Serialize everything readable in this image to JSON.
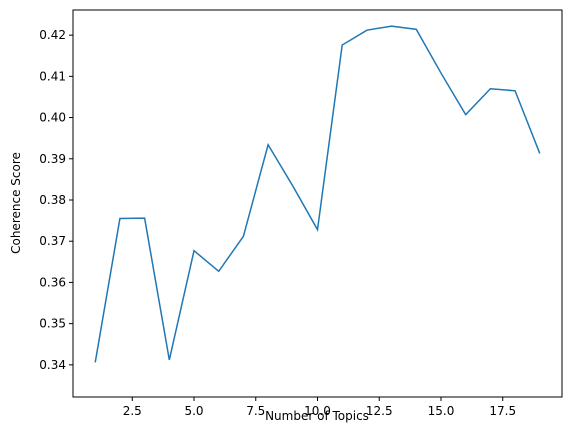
{
  "chart_data": {
    "type": "line",
    "x_label": "Number of Topics",
    "y_label": "Coherence Score",
    "x": [
      1,
      2,
      3,
      4,
      5,
      6,
      7,
      8,
      9,
      10,
      11,
      12,
      13,
      14,
      15,
      16,
      17,
      18,
      19
    ],
    "series": [
      {
        "color": "#1f77b4",
        "values": [
          0.3406,
          0.3755,
          0.3756,
          0.3412,
          0.3677,
          0.3627,
          0.3712,
          0.3934,
          0.3834,
          0.3728,
          0.4176,
          0.4212,
          0.4222,
          0.4214,
          0.4108,
          0.4007,
          0.407,
          0.4065,
          0.3913
        ]
      }
    ],
    "xlim": [
      0.1,
      19.9
    ],
    "ylim": [
      0.3322,
      0.4261
    ],
    "xticks": [
      {
        "value": 2.5,
        "label": "2.5"
      },
      {
        "value": 5,
        "label": "5.0"
      },
      {
        "value": 7.5,
        "label": "7.5"
      },
      {
        "value": 10,
        "label": "10.0"
      },
      {
        "value": 12.5,
        "label": "12.5"
      },
      {
        "value": 15,
        "label": "15.0"
      },
      {
        "value": 17.5,
        "label": "17.5"
      }
    ],
    "yticks": [
      0.34,
      0.35,
      0.36,
      0.37,
      0.38,
      0.39,
      {
        "value": 0.4,
        "label": "0.40"
      },
      0.41,
      0.42
    ]
  }
}
